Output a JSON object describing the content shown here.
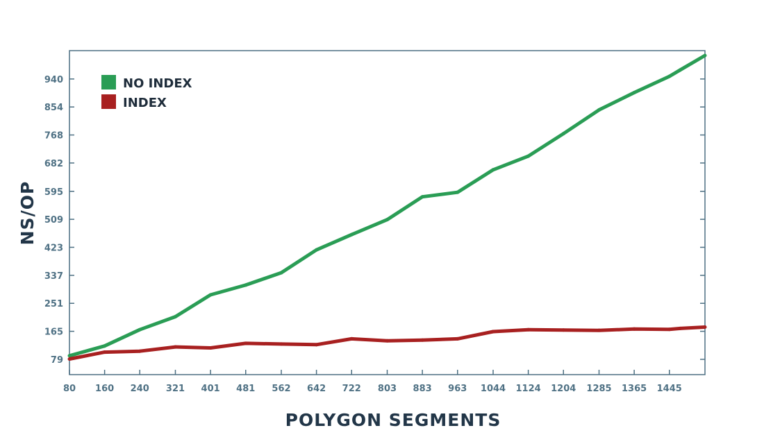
{
  "chart_data": {
    "type": "line",
    "title": "",
    "xlabel": "POLYGON SEGMENTS",
    "ylabel": "NS/OP",
    "x": [
      80,
      160,
      240,
      321,
      401,
      481,
      562,
      642,
      722,
      803,
      883,
      963,
      1044,
      1124,
      1204,
      1285,
      1365,
      1445,
      1470,
      1526
    ],
    "xticks": [
      "80",
      "160",
      "240",
      "321",
      "401",
      "481",
      "562",
      "642",
      "722",
      "803",
      "883",
      "963",
      "1044",
      "1124",
      "1204",
      "1285",
      "1365",
      "1445"
    ],
    "xtick_values": [
      80,
      160,
      240,
      321,
      401,
      481,
      562,
      642,
      722,
      803,
      883,
      963,
      1044,
      1124,
      1204,
      1285,
      1365,
      1445
    ],
    "yticks": [
      "79",
      "165",
      "251",
      "337",
      "423",
      "509",
      "595",
      "682",
      "768",
      "854",
      "940"
    ],
    "ytick_values": [
      79,
      165,
      251,
      337,
      423,
      509,
      595,
      682,
      768,
      854,
      940
    ],
    "xlim": [
      80,
      1526
    ],
    "ylim": [
      32,
      1027
    ],
    "grid": false,
    "legend_position": "top-left",
    "series": [
      {
        "name": "NO INDEX",
        "color": "#2a9d55",
        "values": [
          90,
          120,
          170,
          210,
          277,
          307,
          345,
          415,
          462,
          508,
          578,
          592,
          661,
          703,
          772,
          845,
          898,
          948,
          968,
          1012
        ]
      },
      {
        "name": "INDEX",
        "color": "#a82020",
        "values": [
          80,
          101,
          104,
          117,
          114,
          128,
          126,
          124,
          142,
          136,
          138,
          142,
          164,
          170,
          169,
          168,
          172,
          171,
          174,
          178
        ]
      }
    ]
  },
  "axis_color": "#4c6f82"
}
